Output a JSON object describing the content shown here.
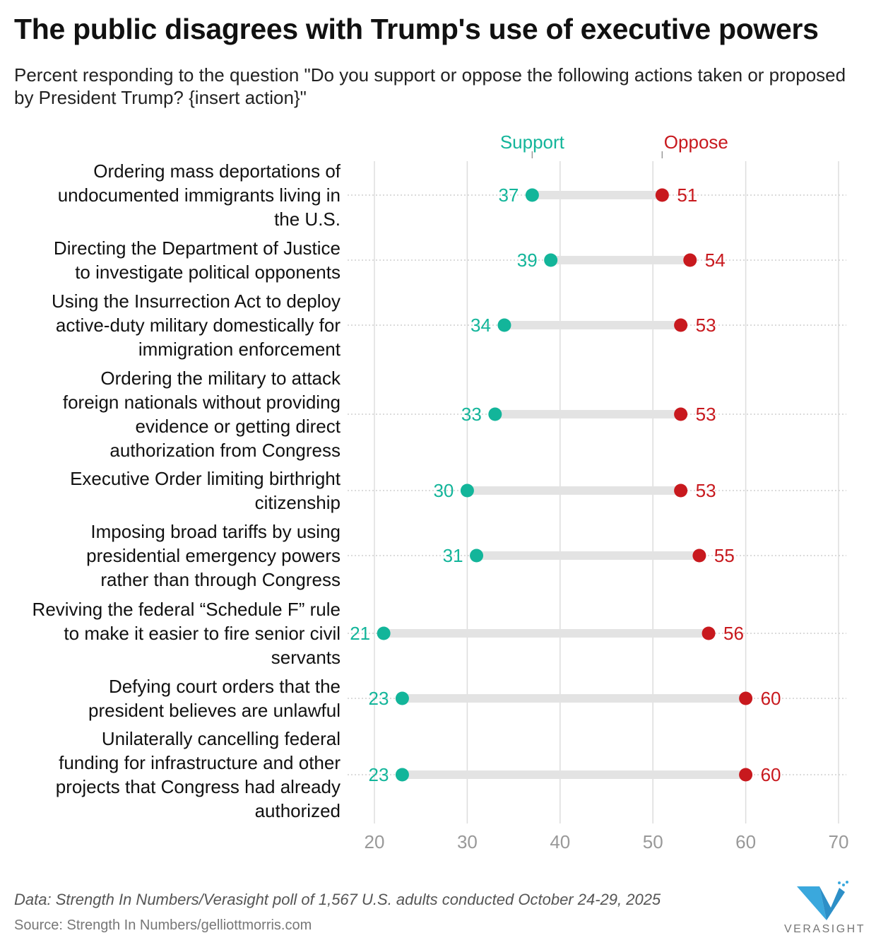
{
  "title": "The public disagrees with Trump's use of executive powers",
  "subtitle": "Percent responding to the question \"Do you support or oppose the following actions taken or proposed by President Trump? {insert action}\"",
  "colors": {
    "support": "#13b59a",
    "oppose": "#c8191e",
    "bar": "#e3e3e3",
    "grid": "#dddddd",
    "axis_text": "#999999"
  },
  "chart_data": {
    "type": "dumbbell",
    "xlim": [
      20,
      70
    ],
    "xticks": [
      "20",
      "30",
      "40",
      "50",
      "60",
      "70"
    ],
    "xtick_values": [
      20,
      30,
      40,
      50,
      60,
      70
    ],
    "legend": {
      "support": "Support",
      "oppose": "Oppose",
      "placement": "top"
    },
    "categories": [
      [
        "Ordering mass deportations of",
        "undocumented immigrants living in",
        "the U.S."
      ],
      [
        "Directing the Department of Justice",
        "to investigate political opponents"
      ],
      [
        "Using the Insurrection Act to deploy",
        "active-duty military domestically for",
        "immigration enforcement"
      ],
      [
        "Ordering the military to attack",
        "foreign nationals without providing",
        "evidence or getting direct",
        "authorization from Congress"
      ],
      [
        "Executive Order limiting birthright",
        "citizenship"
      ],
      [
        "Imposing broad tariffs by using",
        "presidential emergency powers",
        "rather than through Congress"
      ],
      [
        "Reviving the federal “Schedule F” rule",
        "to make it easier to fire senior civil",
        "servants"
      ],
      [
        "Defying court orders that the",
        "president believes are unlawful"
      ],
      [
        "Unilaterally cancelling federal",
        "funding for infrastructure and other",
        "projects that Congress had already",
        "authorized"
      ]
    ],
    "series": [
      {
        "name": "Support",
        "values": [
          37,
          39,
          34,
          33,
          30,
          31,
          21,
          23,
          23
        ]
      },
      {
        "name": "Oppose",
        "values": [
          51,
          54,
          53,
          53,
          53,
          55,
          56,
          60,
          60
        ]
      }
    ]
  },
  "footer": {
    "note": "Data: Strength In Numbers/Verasight poll of 1,567 U.S. adults conducted October 24-29, 2025",
    "source": "Source: Strength In Numbers/gelliottmorris.com",
    "logo_text": "VERASIGHT"
  }
}
